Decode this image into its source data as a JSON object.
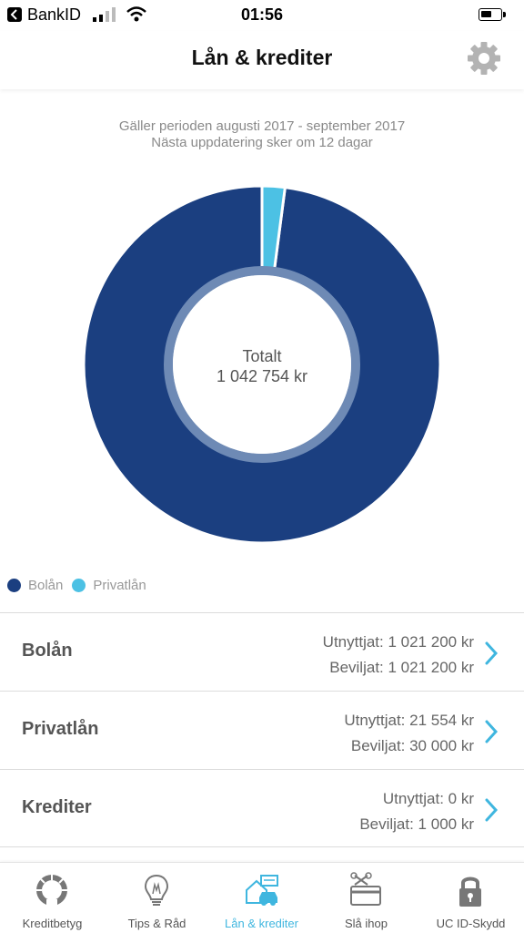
{
  "status_bar": {
    "carrier": "BankID",
    "time": "01:56",
    "battery_level": 0.6
  },
  "header": {
    "title": "Lån & krediter",
    "settings_icon": "gear-icon"
  },
  "period": {
    "line1": "Gäller perioden augusti 2017 - september 2017",
    "line2": "Nästa uppdatering sker om 12 dagar"
  },
  "chart_data": {
    "type": "pie",
    "categories": [
      "Bolån",
      "Privatlån"
    ],
    "values": [
      1021200,
      21554
    ],
    "colors": [
      "#1b3f80",
      "#4cc1e4"
    ],
    "center_label": "Totalt",
    "center_value": "1 042 754 kr",
    "legend_placement": "bottom-left"
  },
  "legend": [
    {
      "label": "Bolån",
      "color": "#1b3f80"
    },
    {
      "label": "Privatlån",
      "color": "#4cc1e4"
    }
  ],
  "loans": [
    {
      "name": "Bolån",
      "used": "Utnyttjat: 1 021 200 kr",
      "granted": "Beviljat: 1 021 200 kr"
    },
    {
      "name": "Privatlån",
      "used": "Utnyttjat: 21 554 kr",
      "granted": "Beviljat: 30 000 kr"
    },
    {
      "name": "Krediter",
      "used": "Utnyttjat: 0 kr",
      "granted": "Beviljat: 1 000 kr"
    }
  ],
  "tabs": [
    {
      "label": "Kreditbetyg",
      "icon": "gauge-icon",
      "active": false
    },
    {
      "label": "Tips & Råd",
      "icon": "lightbulb-icon",
      "active": false
    },
    {
      "label": "Lån & krediter",
      "icon": "house-car-icon",
      "active": true
    },
    {
      "label": "Slå ihop",
      "icon": "merge-cards-icon",
      "active": false
    },
    {
      "label": "UC ID-Skydd",
      "icon": "lock-icon",
      "active": false
    }
  ],
  "colors": {
    "accent": "#3fb6df",
    "primary_dark": "#1b3f80",
    "primary_light": "#4cc1e4",
    "inner_ring": "#6e8ab5"
  }
}
